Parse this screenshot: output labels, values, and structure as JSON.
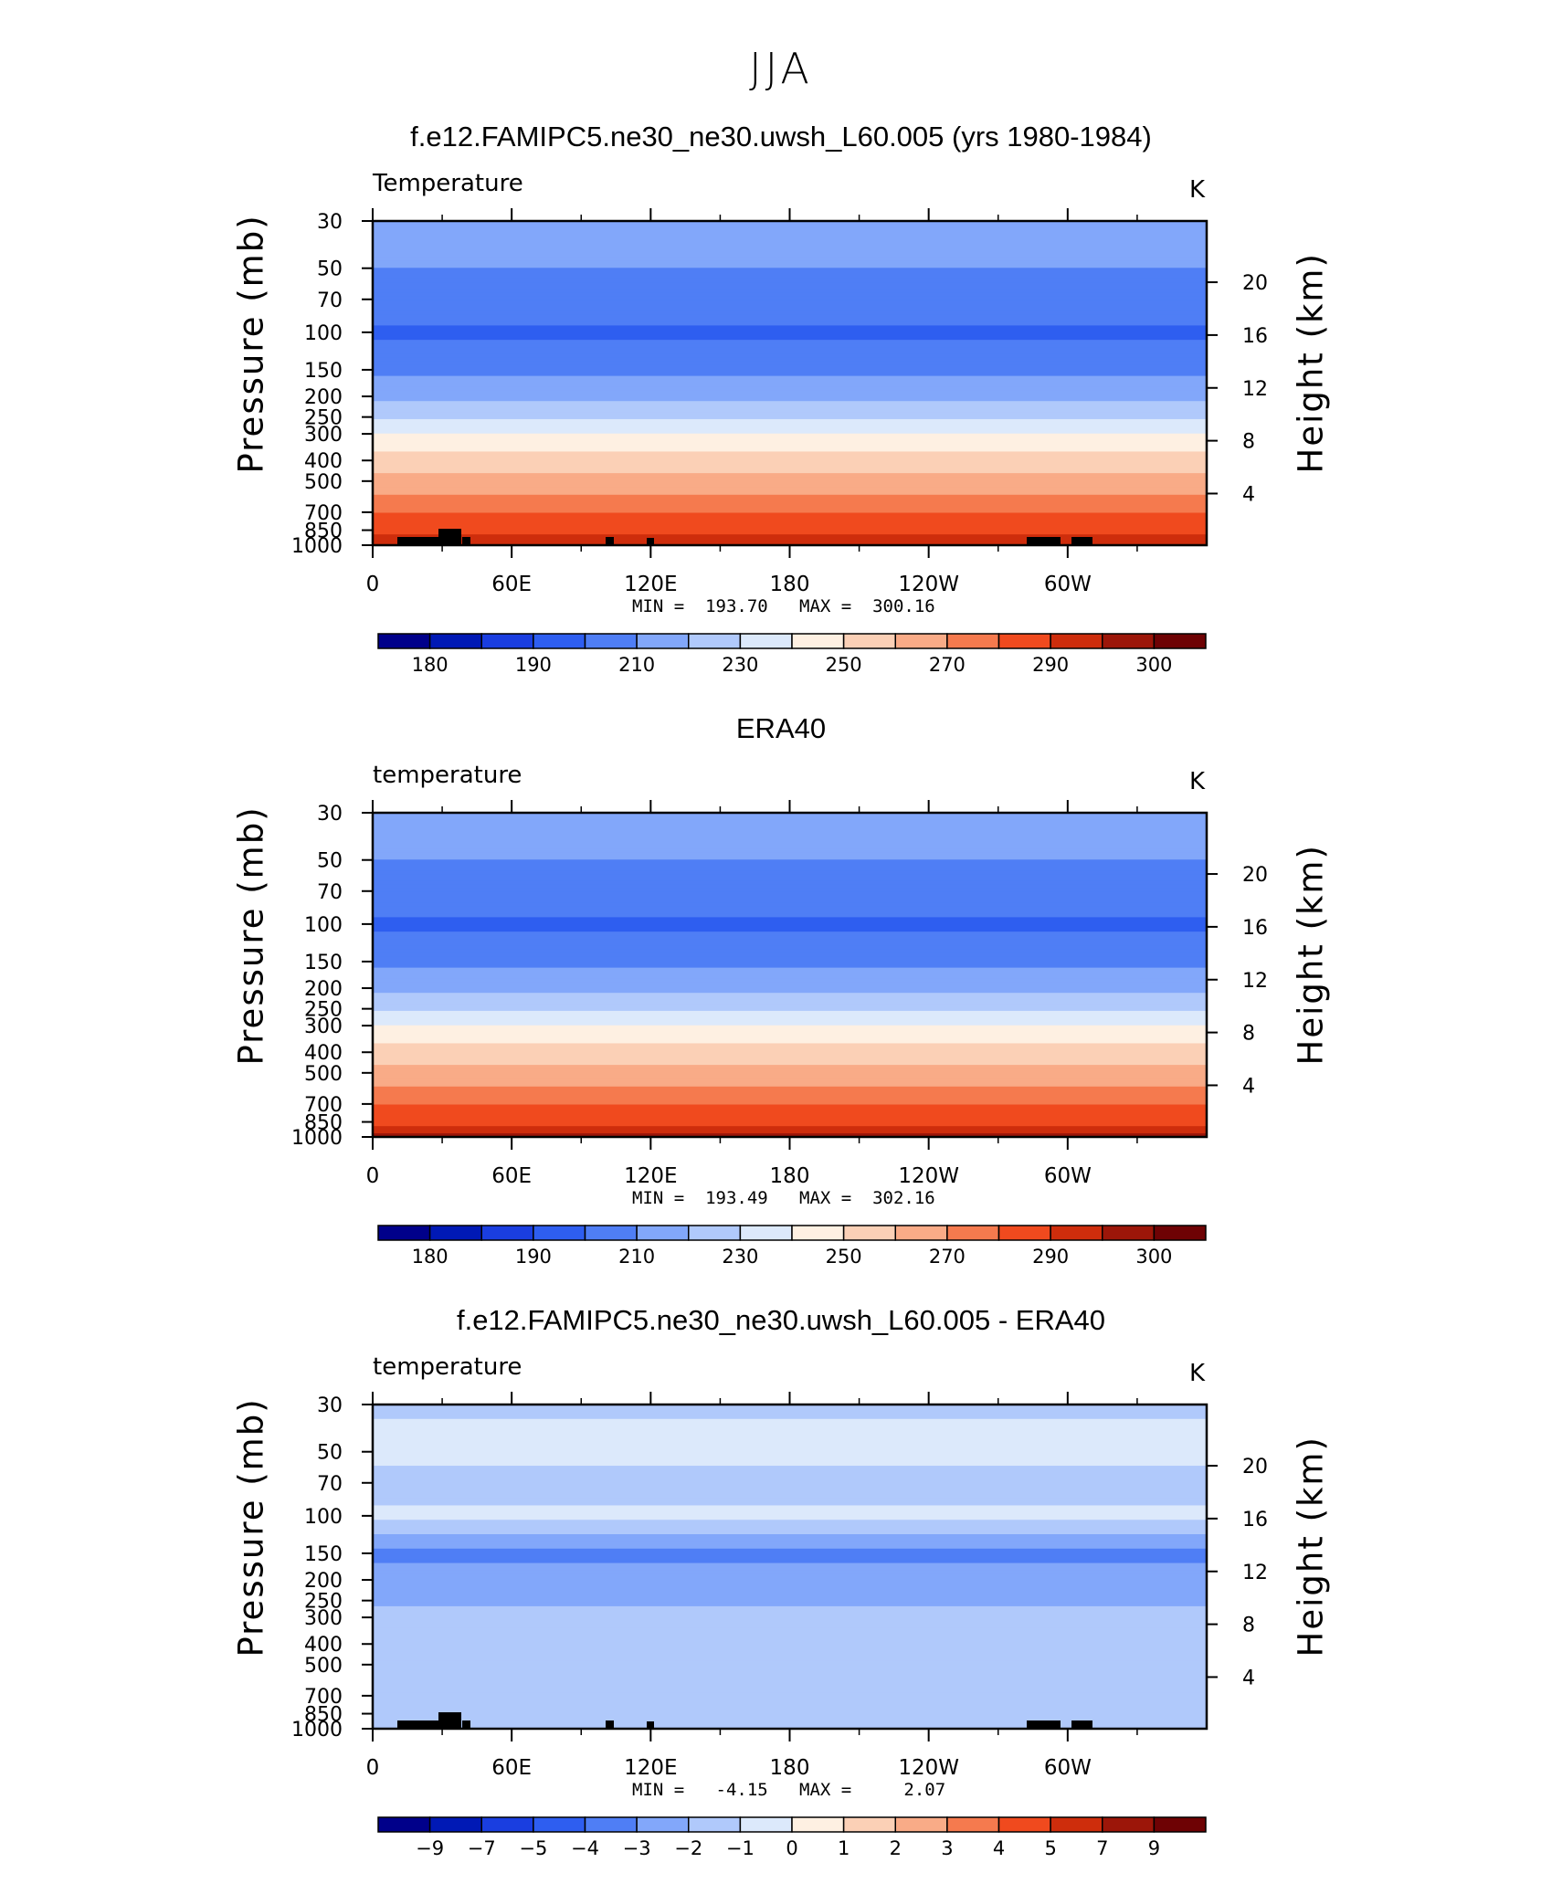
{
  "main_title": "JJA",
  "colors": {
    "temperature_scale": [
      "#00008a",
      "#0019b5",
      "#1a3ee0",
      "#2e5ef0",
      "#4f7ef5",
      "#82a7fa",
      "#b0c9fb",
      "#dce9fb",
      "#fef0e2",
      "#fbd0b6",
      "#f9ab87",
      "#f57a4e",
      "#f04a1e",
      "#ce2d0c",
      "#9c1609",
      "#6e0204"
    ],
    "difference_scale": [
      "#00008a",
      "#0019b5",
      "#1a3ee0",
      "#2e5ef0",
      "#4f7ef5",
      "#82a7fa",
      "#b0c9fb",
      "#dce9fb",
      "#fef0e2",
      "#fbd0b6",
      "#f9ab87",
      "#f57a4e",
      "#f04a1e",
      "#ce2d0c",
      "#9c1609",
      "#6e0204"
    ],
    "topography": "#000000"
  },
  "panels": [
    {
      "title": "f.e12.FAMIPC5.ne30_ne30.uwsh_L60.005 (yrs 1980-1984)",
      "left_label": "Temperature",
      "units": "K",
      "ylabel": "Pressure (mb)",
      "y2label": "Height (km)",
      "stats": "MIN =  193.70   MAX =  300.16"
    },
    {
      "title": "ERA40",
      "left_label": "temperature",
      "units": "K",
      "ylabel": "Pressure (mb)",
      "y2label": "Height (km)",
      "stats": "MIN =  193.49   MAX =  302.16"
    },
    {
      "title": "f.e12.FAMIPC5.ne30_ne30.uwsh_L60.005 - ERA40",
      "left_label": "temperature",
      "units": "K",
      "ylabel": "Pressure (mb)",
      "y2label": "Height (km)",
      "stats": "MIN =   -4.15   MAX =     2.07"
    }
  ],
  "chart_data": [
    {
      "type": "heatmap",
      "title": "f.e12.FAMIPC5.ne30_ne30.uwsh_L60.005 (yrs 1980-1984)",
      "subtitle": "Temperature",
      "units": "K",
      "ylabel": "Pressure (mb)",
      "y2label": "Height (km)",
      "x_ticks": [
        "0",
        "60E",
        "120E",
        "180",
        "120W",
        "60W"
      ],
      "x_range": [
        0,
        360
      ],
      "y_ticks": [
        "30",
        "50",
        "70",
        "100",
        "150",
        "200",
        "250",
        "300",
        "400",
        "500",
        "700",
        "850",
        "1000"
      ],
      "y_range": [
        1000,
        30
      ],
      "y_scale": "log",
      "y2_ticks": [
        "4",
        "8",
        "12",
        "16",
        "20"
      ],
      "min": 193.7,
      "max": 300.16,
      "levels": [
        "180",
        "190",
        "210",
        "230",
        "250",
        "270",
        "290",
        "300"
      ],
      "profile": [
        {
          "p": 30,
          "t": 215
        },
        {
          "p": 50,
          "t": 210
        },
        {
          "p": 70,
          "t": 206
        },
        {
          "p": 100,
          "t": 198
        },
        {
          "p": 150,
          "t": 207
        },
        {
          "p": 200,
          "t": 218
        },
        {
          "p": 250,
          "t": 228
        },
        {
          "p": 300,
          "t": 240
        },
        {
          "p": 400,
          "t": 254
        },
        {
          "p": 500,
          "t": 264
        },
        {
          "p": 700,
          "t": 279
        },
        {
          "p": 850,
          "t": 287
        },
        {
          "p": 1000,
          "t": 296
        }
      ]
    },
    {
      "type": "heatmap",
      "title": "ERA40",
      "subtitle": "temperature",
      "units": "K",
      "ylabel": "Pressure (mb)",
      "y2label": "Height (km)",
      "x_ticks": [
        "0",
        "60E",
        "120E",
        "180",
        "120W",
        "60W"
      ],
      "x_range": [
        0,
        360
      ],
      "y_ticks": [
        "30",
        "50",
        "70",
        "100",
        "150",
        "200",
        "250",
        "300",
        "400",
        "500",
        "700",
        "850",
        "1000"
      ],
      "y_range": [
        1000,
        30
      ],
      "y_scale": "log",
      "y2_ticks": [
        "4",
        "8",
        "12",
        "16",
        "20"
      ],
      "min": 193.49,
      "max": 302.16,
      "levels": [
        "180",
        "190",
        "210",
        "230",
        "250",
        "270",
        "290",
        "300"
      ],
      "profile": [
        {
          "p": 30,
          "t": 215
        },
        {
          "p": 50,
          "t": 210
        },
        {
          "p": 70,
          "t": 206
        },
        {
          "p": 100,
          "t": 198
        },
        {
          "p": 150,
          "t": 207
        },
        {
          "p": 200,
          "t": 218
        },
        {
          "p": 250,
          "t": 228
        },
        {
          "p": 300,
          "t": 240
        },
        {
          "p": 400,
          "t": 254
        },
        {
          "p": 500,
          "t": 264
        },
        {
          "p": 700,
          "t": 279
        },
        {
          "p": 850,
          "t": 288
        },
        {
          "p": 1000,
          "t": 297
        }
      ]
    },
    {
      "type": "heatmap",
      "title": "f.e12.FAMIPC5.ne30_ne30.uwsh_L60.005 - ERA40",
      "subtitle": "temperature",
      "units": "K",
      "ylabel": "Pressure (mb)",
      "y2label": "Height (km)",
      "x_ticks": [
        "0",
        "60E",
        "120E",
        "180",
        "120W",
        "60W"
      ],
      "x_range": [
        0,
        360
      ],
      "y_ticks": [
        "30",
        "50",
        "70",
        "100",
        "150",
        "200",
        "250",
        "300",
        "400",
        "500",
        "700",
        "850",
        "1000"
      ],
      "y_range": [
        1000,
        30
      ],
      "y_scale": "log",
      "y2_ticks": [
        "4",
        "8",
        "12",
        "16",
        "20"
      ],
      "min": -4.15,
      "max": 2.07,
      "levels": [
        "−9",
        "−7",
        "−5",
        "−4",
        "−3",
        "−2",
        "−1",
        "0",
        "1",
        "2",
        "3",
        "4",
        "5",
        "7",
        "9"
      ],
      "profile": [
        {
          "p": 30,
          "t": -1.2
        },
        {
          "p": 50,
          "t": -0.5
        },
        {
          "p": 70,
          "t": -1.5
        },
        {
          "p": 100,
          "t": -0.8
        },
        {
          "p": 150,
          "t": -3.2
        },
        {
          "p": 200,
          "t": -2.6
        },
        {
          "p": 250,
          "t": -2.2
        },
        {
          "p": 300,
          "t": -1.6
        },
        {
          "p": 400,
          "t": -1.3
        },
        {
          "p": 500,
          "t": -1.2
        },
        {
          "p": 700,
          "t": -1.3
        },
        {
          "p": 850,
          "t": -1.5
        },
        {
          "p": 1000,
          "t": -1.4
        }
      ]
    }
  ]
}
